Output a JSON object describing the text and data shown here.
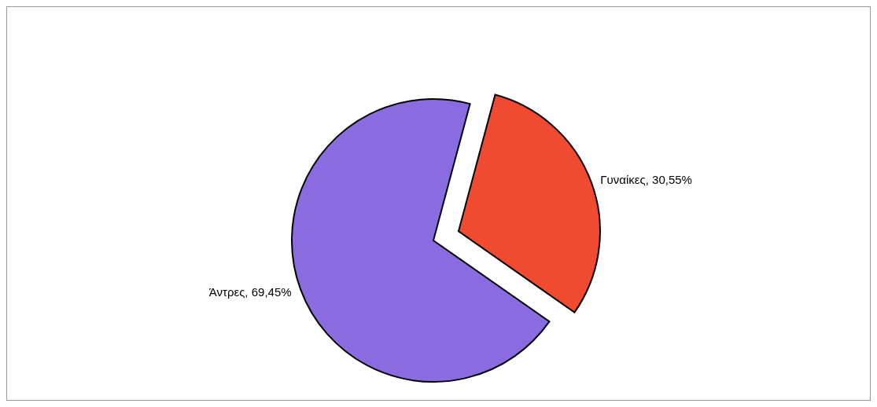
{
  "chart_data": {
    "type": "pie",
    "categories": [
      "Γυναίκες",
      "Άντρες"
    ],
    "values": [
      30.55,
      69.45
    ],
    "value_labels": [
      "30,55%",
      "69,45%"
    ],
    "colors": [
      "#f04a30",
      "#8a6be0"
    ]
  }
}
